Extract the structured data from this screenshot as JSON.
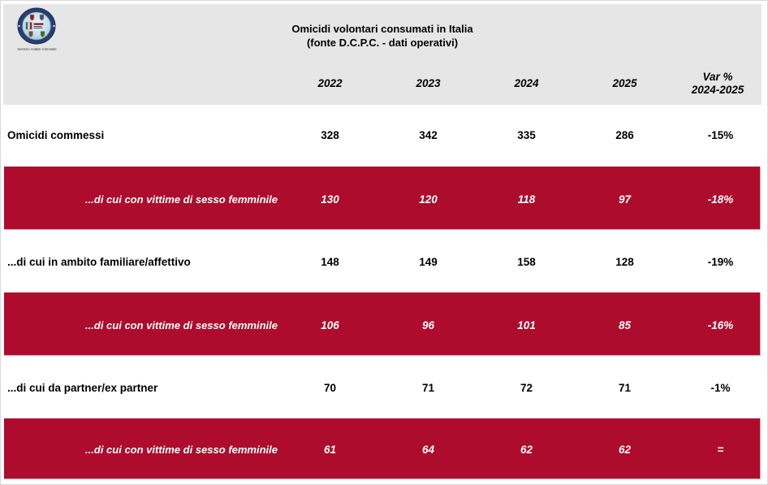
{
  "logo": {
    "caption": "Servizio Analisi Criminale",
    "icon": "servizio-analisi-criminale-emblem",
    "colors": {
      "ring": "#27406E",
      "inner": "#C9DFF0",
      "flag_green": "#1A8A3C",
      "flag_red": "#C8102E"
    }
  },
  "header": {
    "title_line1": "Omicidi volontari consumati in Italia",
    "title_line2": "(fonte D.C.P.C. - dati operativi)"
  },
  "chart_data": {
    "type": "table",
    "title": "Omicidi volontari consumati in Italia",
    "subtitle": "(fonte D.C.P.C. - dati operativi)",
    "columns": [
      "2022",
      "2023",
      "2024",
      "2025",
      "Var %\n2024-2025"
    ],
    "rows": [
      {
        "label": "Omicidi commessi",
        "values": [
          "328",
          "342",
          "335",
          "286",
          "-15%"
        ],
        "highlight": false
      },
      {
        "label": "...di cui con vittime di sesso femminile",
        "values": [
          "130",
          "120",
          "118",
          "97",
          "-18%"
        ],
        "highlight": true
      },
      {
        "label": "...di cui in ambito familiare/affettivo",
        "values": [
          "148",
          "149",
          "158",
          "128",
          "-19%"
        ],
        "highlight": false
      },
      {
        "label": "...di cui con vittime di sesso femminile",
        "values": [
          "106",
          "96",
          "101",
          "85",
          "-16%"
        ],
        "highlight": true
      },
      {
        "label": "...di cui da partner/ex partner",
        "values": [
          "70",
          "71",
          "72",
          "71",
          "-1%"
        ],
        "highlight": false
      },
      {
        "label": "...di cui con vittime di sesso femminile",
        "values": [
          "61",
          "64",
          "62",
          "62",
          "="
        ],
        "highlight": true
      }
    ],
    "layout_hints": {
      "highlight_bg": "#AE0C2C",
      "highlight_text": "#FFFFFF",
      "header_band_bg": "#E6E6E6",
      "body_text": "#000000"
    }
  }
}
